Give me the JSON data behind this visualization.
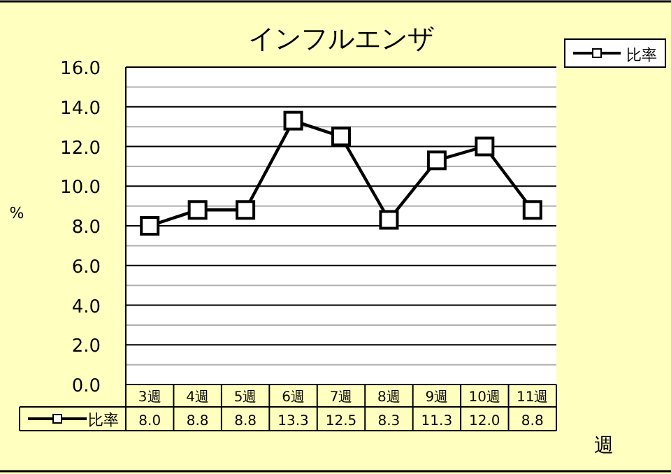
{
  "chart_data": {
    "type": "line",
    "title": "インフルエンザ",
    "ylabel": "%",
    "xlabel": "週",
    "categories": [
      "3週",
      "4週",
      "5週",
      "6週",
      "7週",
      "8週",
      "9週",
      "10週",
      "11週"
    ],
    "series": [
      {
        "name": "比率",
        "color": "#000000",
        "values": [
          8.0,
          8.8,
          8.8,
          13.3,
          12.5,
          8.3,
          11.3,
          12.0,
          8.8
        ],
        "value_labels": [
          "8.0",
          "8.8",
          "8.8",
          "13.3",
          "12.5",
          "8.3",
          "11.3",
          "12.0",
          "8.8"
        ]
      }
    ],
    "ylim": [
      0,
      16
    ],
    "yticks": [
      {
        "value": 0,
        "label": "0.0"
      },
      {
        "value": 1,
        "label": null
      },
      {
        "value": 2,
        "label": "2.0"
      },
      {
        "value": 3,
        "label": null
      },
      {
        "value": 4,
        "label": "4.0"
      },
      {
        "value": 5,
        "label": null
      },
      {
        "value": 6,
        "label": "6.0"
      },
      {
        "value": 7,
        "label": null
      },
      {
        "value": 8,
        "label": "8.0"
      },
      {
        "value": 9,
        "label": null
      },
      {
        "value": 10,
        "label": "10.0"
      },
      {
        "value": 11,
        "label": null
      },
      {
        "value": 12,
        "label": "12.0"
      },
      {
        "value": 13,
        "label": null
      },
      {
        "value": 14,
        "label": "14.0"
      },
      {
        "value": 15,
        "label": null
      },
      {
        "value": 16,
        "label": "16.0"
      }
    ],
    "grid": "y",
    "legend": "top right",
    "marker": "square",
    "line_style": "solid"
  }
}
